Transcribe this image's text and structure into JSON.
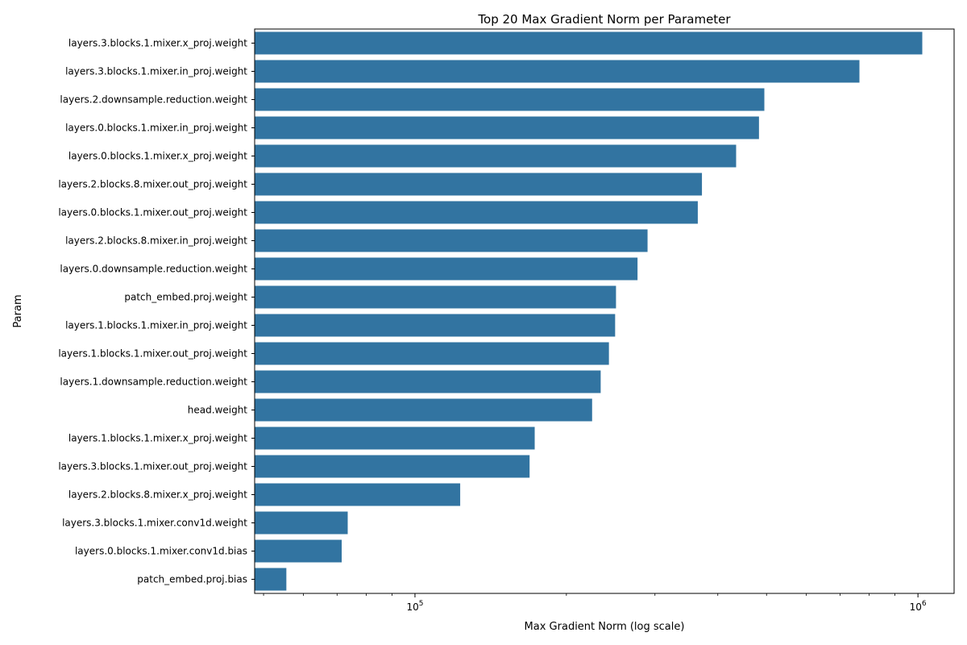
{
  "chart_data": {
    "type": "bar",
    "orientation": "horizontal",
    "title": "Top 20 Max Gradient Norm per Parameter",
    "xlabel": "Max Gradient Norm (log scale)",
    "ylabel": "Param",
    "x_scale": "log",
    "xlim": [
      48000,
      1180000
    ],
    "x_major_ticks": [
      {
        "value": 100000,
        "base": "10",
        "exp": "5"
      },
      {
        "value": 1000000,
        "base": "10",
        "exp": "6"
      }
    ],
    "bar_color": "#3274a1",
    "categories": [
      "layers.3.blocks.1.mixer.x_proj.weight",
      "layers.3.blocks.1.mixer.in_proj.weight",
      "layers.2.downsample.reduction.weight",
      "layers.0.blocks.1.mixer.in_proj.weight",
      "layers.0.blocks.1.mixer.x_proj.weight",
      "layers.2.blocks.8.mixer.out_proj.weight",
      "layers.0.blocks.1.mixer.out_proj.weight",
      "layers.2.blocks.8.mixer.in_proj.weight",
      "layers.0.downsample.reduction.weight",
      "patch_embed.proj.weight",
      "layers.1.blocks.1.mixer.in_proj.weight",
      "layers.1.blocks.1.mixer.out_proj.weight",
      "layers.1.downsample.reduction.weight",
      "head.weight",
      "layers.1.blocks.1.mixer.x_proj.weight",
      "layers.3.blocks.1.mixer.out_proj.weight",
      "layers.2.blocks.8.mixer.x_proj.weight",
      "layers.3.blocks.1.mixer.conv1d.weight",
      "layers.0.blocks.1.mixer.conv1d.bias",
      "patch_embed.proj.bias"
    ],
    "values": [
      1020000,
      765000,
      495000,
      483000,
      435000,
      372000,
      365000,
      290000,
      277000,
      251000,
      250000,
      243000,
      234000,
      225000,
      173000,
      169000,
      123000,
      73500,
      71500,
      55500
    ],
    "grid": false,
    "legend": "none"
  }
}
